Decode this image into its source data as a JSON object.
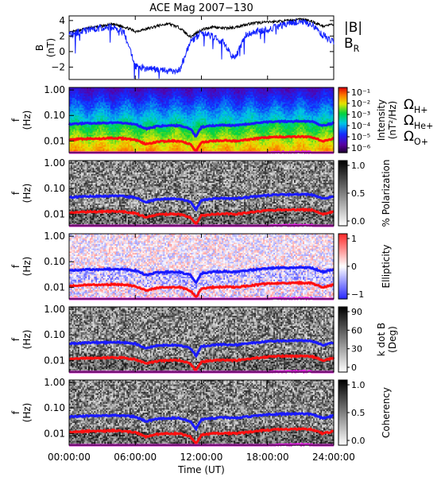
{
  "chart_data": {
    "title": "ACE Mag 2007−130",
    "x_label": "Time (UT)",
    "x_ticks": [
      "00:00:00",
      "06:00:00",
      "12:00:00",
      "18:00:00",
      "24:00:00"
    ],
    "x_range_hours": [
      0,
      24
    ],
    "panels": [
      {
        "type": "line",
        "y_label": "B",
        "y_unit": "(nT)",
        "y_ticks": [
          "4",
          "2",
          "0",
          "−2"
        ],
        "y_range": [
          -3.6,
          4.6
        ],
        "series": [
          {
            "name": "|B|",
            "color": "#000000",
            "values": [
              [
                0,
                2.4
              ],
              [
                1,
                2.8
              ],
              [
                2,
                3.1
              ],
              [
                3,
                3.3
              ],
              [
                4,
                3.5
              ],
              [
                5,
                3.2
              ],
              [
                6,
                2.6
              ],
              [
                7,
                2.9
              ],
              [
                8,
                3.3
              ],
              [
                9,
                3.6
              ],
              [
                10,
                3.1
              ],
              [
                11,
                1.9
              ],
              [
                12,
                2.8
              ],
              [
                13,
                3.2
              ],
              [
                14,
                3.0
              ],
              [
                15,
                3.1
              ],
              [
                16,
                3.5
              ],
              [
                17,
                3.7
              ],
              [
                18,
                3.8
              ],
              [
                19,
                3.9
              ],
              [
                20,
                4.0
              ],
              [
                21,
                4.2
              ],
              [
                22,
                3.9
              ],
              [
                23,
                3.3
              ],
              [
                24,
                3.5
              ]
            ]
          },
          {
            "name": "B",
            "subscript": "R",
            "color": "#1020ff",
            "values": [
              [
                0,
                2.1
              ],
              [
                1,
                2.6
              ],
              [
                2,
                2.9
              ],
              [
                3,
                3.0
              ],
              [
                4,
                3.2
              ],
              [
                5,
                2.4
              ],
              [
                6,
                -1.9
              ],
              [
                7,
                -2.2
              ],
              [
                8,
                -2.3
              ],
              [
                9,
                -2.5
              ],
              [
                10,
                -2.4
              ],
              [
                11,
                1.2
              ],
              [
                12,
                2.4
              ],
              [
                13,
                2.0
              ],
              [
                14,
                1.1
              ],
              [
                15,
                -1.0
              ],
              [
                16,
                2.1
              ],
              [
                17,
                2.6
              ],
              [
                18,
                2.8
              ],
              [
                19,
                3.3
              ],
              [
                20,
                3.6
              ],
              [
                21,
                3.9
              ],
              [
                22,
                3.5
              ],
              [
                23,
                2.1
              ],
              [
                24,
                1.3
              ]
            ]
          }
        ]
      },
      {
        "type": "heatmap",
        "y_label": "f",
        "y_unit": "(Hz)",
        "y_ticks": [
          "1.00",
          "0.10",
          "0.01"
        ],
        "colorbar": {
          "label": "Intensity",
          "unit": "(nT²/Hz)",
          "palette": "rainbow",
          "ticks": [
            "10⁻¹",
            "10⁻²",
            "10⁻³",
            "10⁻⁴",
            "10⁻⁵",
            "10⁻⁶"
          ]
        }
      },
      {
        "type": "heatmap",
        "y_label": "f",
        "y_unit": "(Hz)",
        "y_ticks": [
          "1.00",
          "0.10",
          "0.01"
        ],
        "colorbar": {
          "label": "% Polarization",
          "unit": "",
          "palette": "gray",
          "ticks": [
            "1.0",
            "0.5",
            "0.0"
          ]
        }
      },
      {
        "type": "heatmap",
        "y_label": "f",
        "y_unit": "(Hz)",
        "y_ticks": [
          "1.00",
          "0.10",
          "0.01"
        ],
        "colorbar": {
          "label": "Ellipticity",
          "unit": "",
          "palette": "bwr",
          "ticks": [
            "1",
            "0",
            "−1"
          ]
        }
      },
      {
        "type": "heatmap",
        "y_label": "f",
        "y_unit": "(Hz)",
        "y_ticks": [
          "1.00",
          "0.10",
          "0.01"
        ],
        "colorbar": {
          "label": "k dot B",
          "unit": "(Deg)",
          "palette": "gray",
          "ticks": [
            "90",
            "60",
            "30",
            "0"
          ]
        }
      },
      {
        "type": "heatmap",
        "y_label": "f",
        "y_unit": "(Hz)",
        "y_ticks": [
          "1.00",
          "0.10",
          "0.01"
        ],
        "colorbar": {
          "label": "Coherency",
          "unit": "",
          "palette": "gray",
          "ticks": [
            "1.0",
            "0.5",
            "0.0"
          ]
        }
      }
    ],
    "gyrofrequency_lines": [
      {
        "name": "Ω",
        "subscript": "H+",
        "color": "#1a1aff",
        "values": [
          [
            0,
            0.045
          ],
          [
            1,
            0.048
          ],
          [
            2,
            0.05
          ],
          [
            3,
            0.05
          ],
          [
            4,
            0.052
          ],
          [
            5,
            0.05
          ],
          [
            6,
            0.045
          ],
          [
            7,
            0.03
          ],
          [
            8,
            0.038
          ],
          [
            9,
            0.04
          ],
          [
            10,
            0.04
          ],
          [
            11,
            0.03
          ],
          [
            11.5,
            0.015
          ],
          [
            12,
            0.035
          ],
          [
            13,
            0.04
          ],
          [
            14,
            0.042
          ],
          [
            15,
            0.04
          ],
          [
            16,
            0.045
          ],
          [
            17,
            0.05
          ],
          [
            18,
            0.055
          ],
          [
            19,
            0.058
          ],
          [
            20,
            0.058
          ],
          [
            21,
            0.06
          ],
          [
            22,
            0.058
          ],
          [
            23,
            0.04
          ],
          [
            24,
            0.05
          ]
        ]
      },
      {
        "name": "Ω",
        "subscript": "He+",
        "color": "#ff1010",
        "values": [
          [
            0,
            0.011
          ],
          [
            1,
            0.012
          ],
          [
            2,
            0.0125
          ],
          [
            3,
            0.0125
          ],
          [
            4,
            0.013
          ],
          [
            5,
            0.0125
          ],
          [
            6,
            0.011
          ],
          [
            7,
            0.0075
          ],
          [
            8,
            0.0095
          ],
          [
            9,
            0.01
          ],
          [
            10,
            0.01
          ],
          [
            11,
            0.0075
          ],
          [
            11.5,
            0.004
          ],
          [
            12,
            0.0088
          ],
          [
            13,
            0.01
          ],
          [
            14,
            0.0105
          ],
          [
            15,
            0.01
          ],
          [
            16,
            0.011
          ],
          [
            17,
            0.0125
          ],
          [
            18,
            0.0138
          ],
          [
            19,
            0.0145
          ],
          [
            20,
            0.0145
          ],
          [
            21,
            0.015
          ],
          [
            22,
            0.0145
          ],
          [
            23,
            0.01
          ],
          [
            24,
            0.0125
          ]
        ]
      },
      {
        "name": "Ω",
        "subscript": "O+",
        "color": "#e020e0",
        "values": [
          [
            0,
            0.0028
          ],
          [
            1,
            0.003
          ],
          [
            2,
            0.0031
          ],
          [
            3,
            0.0031
          ],
          [
            4,
            0.0032
          ],
          [
            5,
            0.0031
          ],
          [
            6,
            0.0028
          ],
          [
            7,
            0.0019
          ],
          [
            8,
            0.0024
          ],
          [
            9,
            0.0025
          ],
          [
            10,
            0.0025
          ],
          [
            11,
            0.0019
          ],
          [
            11.5,
            0.0012
          ],
          [
            12,
            0.0022
          ],
          [
            13,
            0.0025
          ],
          [
            14,
            0.0026
          ],
          [
            15,
            0.0025
          ],
          [
            16,
            0.0028
          ],
          [
            17,
            0.0031
          ],
          [
            18,
            0.0034
          ],
          [
            19,
            0.0036
          ],
          [
            20,
            0.0036
          ],
          [
            21,
            0.0037
          ],
          [
            22,
            0.0036
          ],
          [
            23,
            0.0025
          ],
          [
            24,
            0.0031
          ]
        ]
      }
    ],
    "f_range_hz": [
      0.0035,
      1.25
    ]
  }
}
